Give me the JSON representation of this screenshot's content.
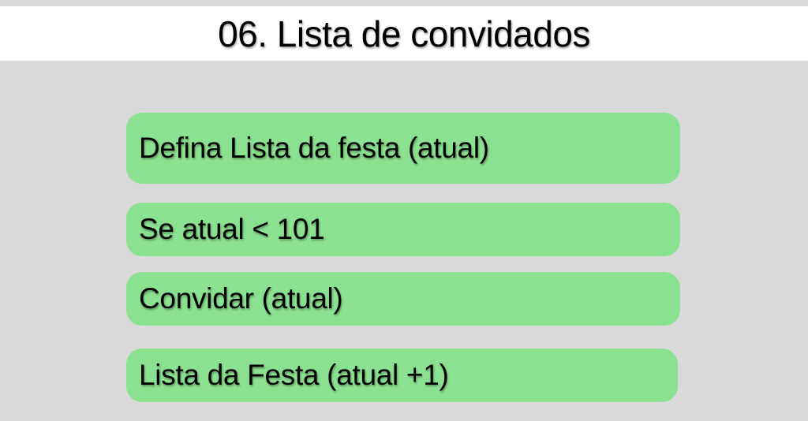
{
  "slide": {
    "title": "06. Lista de convidados"
  },
  "blocks": [
    {
      "label": "Defina Lista da festa (atual)"
    },
    {
      "label": "Se atual < 101"
    },
    {
      "label": "Convidar (atual)"
    },
    {
      "label": "Lista da Festa (atual +1)"
    }
  ],
  "colors": {
    "background": "#d9d9d9",
    "title_bar": "#ffffff",
    "block_fill": "#8ae18f",
    "text": "#000000"
  }
}
